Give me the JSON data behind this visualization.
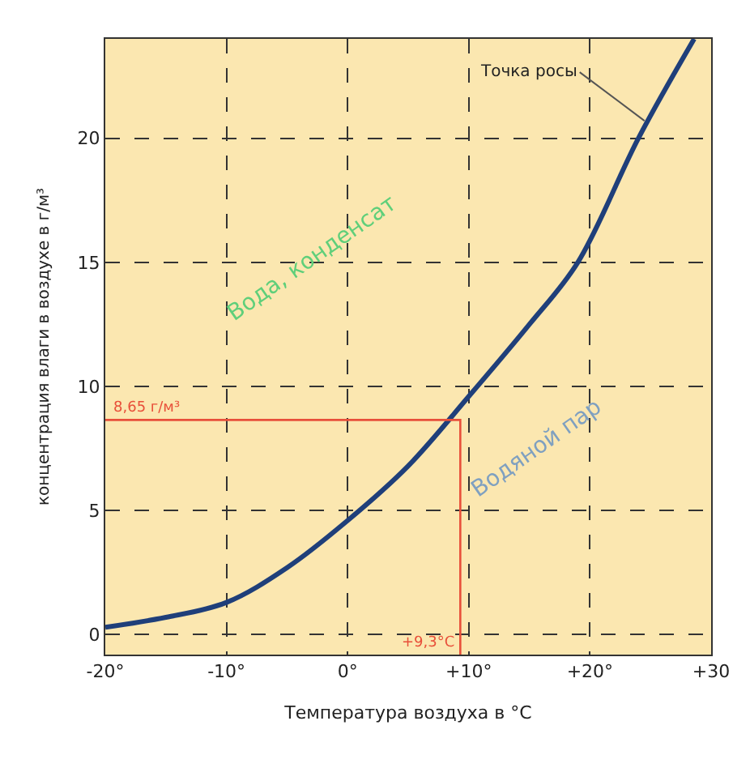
{
  "chart_data": {
    "type": "line",
    "xlabel": "Температура воздуха в °C",
    "ylabel": "концентрация влаги в воздухе в г/м³",
    "xlim": [
      -20,
      30
    ],
    "ylim": [
      -0.8,
      24
    ],
    "xticks": [
      {
        "value": -20,
        "label": "-20°"
      },
      {
        "value": -10,
        "label": "-10°"
      },
      {
        "value": 0,
        "label": "0°"
      },
      {
        "value": 10,
        "label": "+10°"
      },
      {
        "value": 20,
        "label": "+20°"
      },
      {
        "value": 30,
        "label": "+30"
      }
    ],
    "yticks": [
      0,
      5,
      10,
      15,
      20
    ],
    "grid": true,
    "marker": "none",
    "series": [
      {
        "color": "#1f3f7a",
        "x": [
          -20,
          -15,
          -10,
          -5,
          0,
          5,
          10,
          15,
          19,
          24,
          28.6
        ],
        "values": [
          0.3,
          0.7,
          1.3,
          2.7,
          4.6,
          6.8,
          9.6,
          12.5,
          15,
          20,
          24
        ]
      },
      {
        "color": "#e8503a",
        "x": [
          -20,
          9.3,
          9.3
        ],
        "values": [
          8.65,
          8.65,
          -0.8
        ]
      }
    ],
    "annotations": [
      {
        "text": "Точка росы",
        "x": 24.5,
        "y": 20.7
      },
      "Вода, конденсат",
      "Водяной пар",
      {
        "text": "8,65 г/м³",
        "x": -20,
        "y": 8.65
      },
      {
        "text": "+9,3°C",
        "x": 9.3,
        "y": -0.8
      }
    ]
  }
}
